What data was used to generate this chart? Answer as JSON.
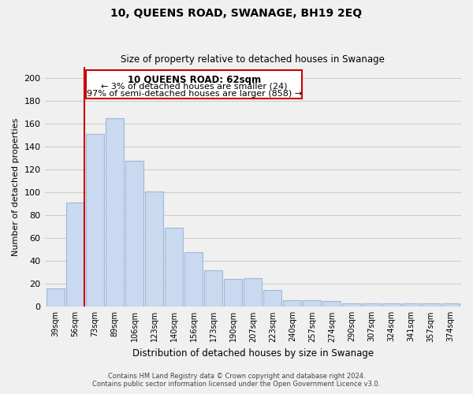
{
  "title": "10, QUEENS ROAD, SWANAGE, BH19 2EQ",
  "subtitle": "Size of property relative to detached houses in Swanage",
  "xlabel": "Distribution of detached houses by size in Swanage",
  "ylabel": "Number of detached properties",
  "bar_labels": [
    "39sqm",
    "56sqm",
    "73sqm",
    "89sqm",
    "106sqm",
    "123sqm",
    "140sqm",
    "156sqm",
    "173sqm",
    "190sqm",
    "207sqm",
    "223sqm",
    "240sqm",
    "257sqm",
    "274sqm",
    "290sqm",
    "307sqm",
    "324sqm",
    "341sqm",
    "357sqm",
    "374sqm"
  ],
  "bar_values": [
    16,
    91,
    151,
    165,
    128,
    101,
    69,
    48,
    32,
    24,
    25,
    15,
    6,
    6,
    5,
    3,
    3,
    3,
    3,
    3,
    3
  ],
  "bar_color": "#c8d9f0",
  "bar_edge_color": "#a0b8d8",
  "grid_color": "#cccccc",
  "vline_color": "#cc0000",
  "annotation_box_edge": "#cc0000",
  "annotation_text_line1": "10 QUEENS ROAD: 62sqm",
  "annotation_text_line2": "← 3% of detached houses are smaller (24)",
  "annotation_text_line3": "97% of semi-detached houses are larger (858) →",
  "ylim": [
    0,
    210
  ],
  "yticks": [
    0,
    20,
    40,
    60,
    80,
    100,
    120,
    140,
    160,
    180,
    200
  ],
  "footer_line1": "Contains HM Land Registry data © Crown copyright and database right 2024.",
  "footer_line2": "Contains public sector information licensed under the Open Government Licence v3.0.",
  "background_color": "#f0f0f0"
}
